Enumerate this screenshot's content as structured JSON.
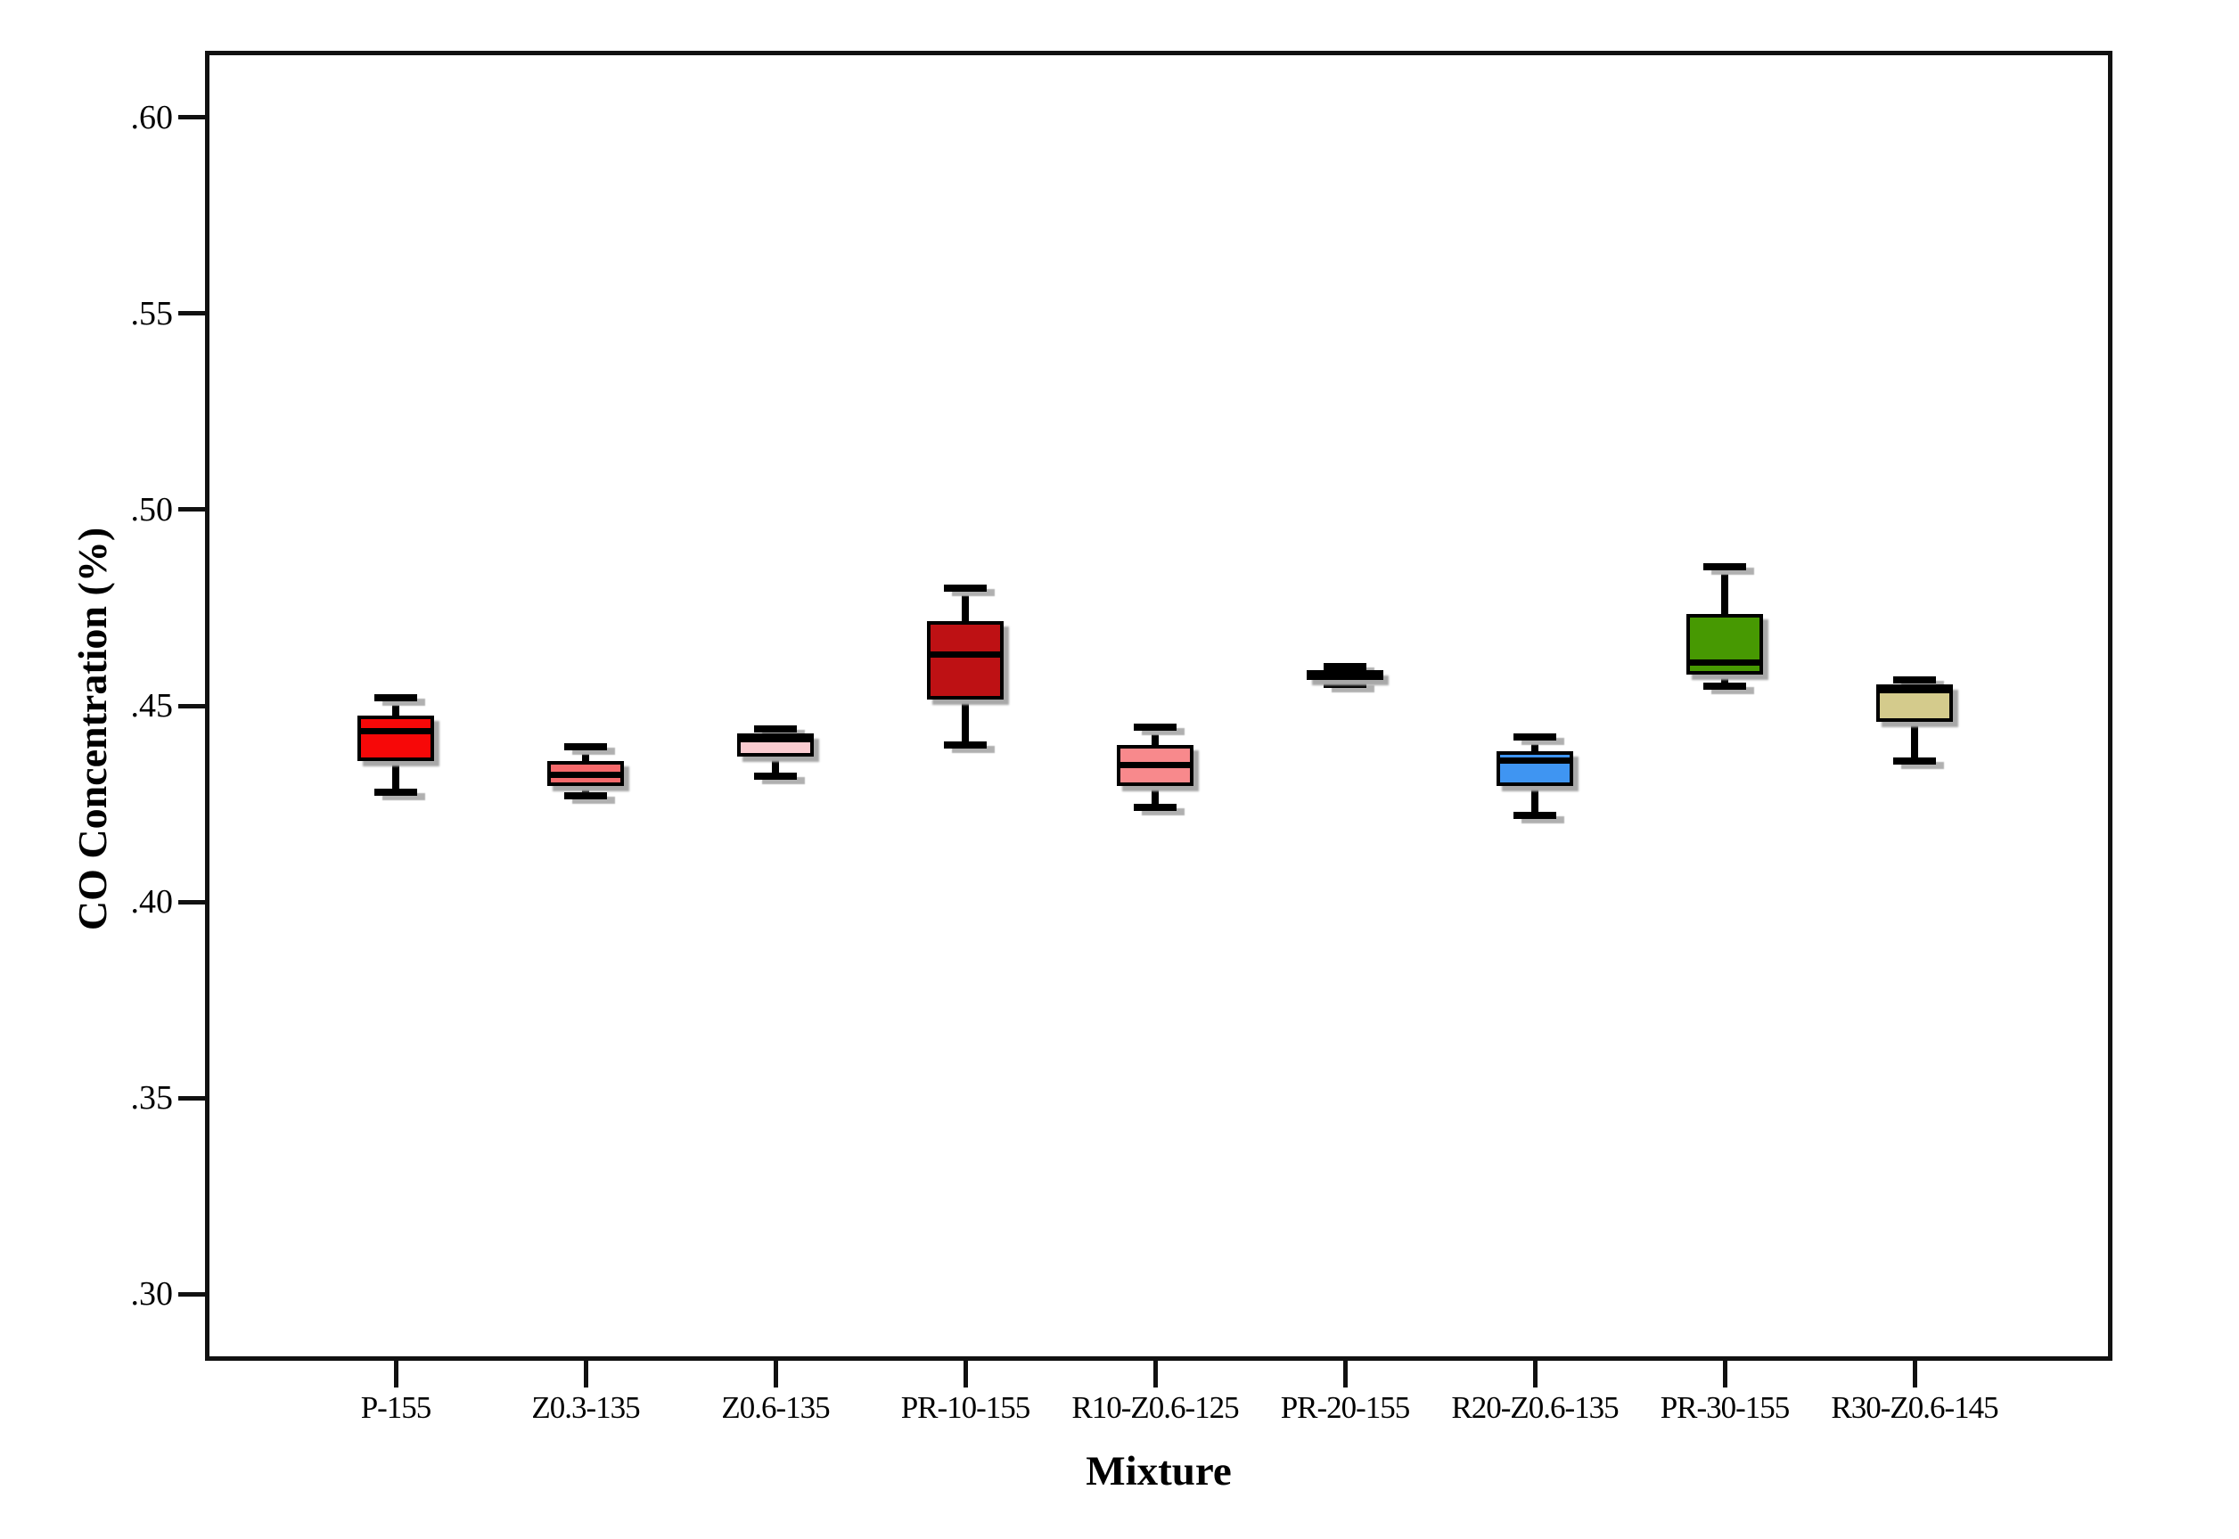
{
  "chart_data": {
    "type": "boxplot",
    "title": "",
    "xlabel": "Mixture",
    "ylabel": "CO Concentration (%)",
    "ylim": [
      0.283,
      0.617
    ],
    "yticks": [
      0.3,
      0.35,
      0.4,
      0.45,
      0.5,
      0.55,
      0.6
    ],
    "ytick_labels": [
      ".30",
      ".35",
      ".40",
      ".45",
      ".50",
      ".55",
      ".60"
    ],
    "grid": "off",
    "legend": "none",
    "frame_color": "#111111",
    "categories": [
      "P-155",
      "Z0.3-135",
      "Z0.6-135",
      "PR-10-155",
      "R10-Z0.6-125",
      "PR-20-155",
      "R20-Z0.6-135",
      "PR-30-155",
      "R30-Z0.6-145"
    ],
    "series": [
      {
        "label": "P-155",
        "color": "#f70808",
        "whisker_low": 0.428,
        "q1": 0.436,
        "median": 0.4435,
        "q3": 0.4475,
        "whisker_high": 0.452
      },
      {
        "label": "Z0.3-135",
        "color": "#f5696b",
        "whisker_low": 0.427,
        "q1": 0.4295,
        "median": 0.4325,
        "q3": 0.436,
        "whisker_high": 0.4395
      },
      {
        "label": "Z0.6-135",
        "color": "#f9cbd0",
        "whisker_low": 0.432,
        "q1": 0.437,
        "median": 0.4415,
        "q3": 0.443,
        "whisker_high": 0.444
      },
      {
        "label": "PR-10-155",
        "color": "#be1114",
        "whisker_low": 0.44,
        "q1": 0.4515,
        "median": 0.463,
        "q3": 0.4715,
        "whisker_high": 0.48
      },
      {
        "label": "R10-Z0.6-125",
        "color": "#f8898c",
        "whisker_low": 0.424,
        "q1": 0.4295,
        "median": 0.435,
        "q3": 0.44,
        "whisker_high": 0.4445
      },
      {
        "label": "PR-20-155",
        "color": "#1c2335",
        "whisker_low": 0.4555,
        "q1": 0.4565,
        "median": 0.4575,
        "q3": 0.459,
        "whisker_high": 0.46
      },
      {
        "label": "R20-Z0.6-135",
        "color": "#3f95f2",
        "whisker_low": 0.422,
        "q1": 0.4295,
        "median": 0.436,
        "q3": 0.4385,
        "whisker_high": 0.442
      },
      {
        "label": "PR-30-155",
        "color": "#479902",
        "whisker_low": 0.455,
        "q1": 0.458,
        "median": 0.461,
        "q3": 0.4735,
        "whisker_high": 0.4855
      },
      {
        "label": "R30-Z0.6-145",
        "color": "#d4cb8c",
        "whisker_low": 0.436,
        "q1": 0.446,
        "median": 0.454,
        "q3": 0.4555,
        "whisker_high": 0.4565
      }
    ]
  }
}
